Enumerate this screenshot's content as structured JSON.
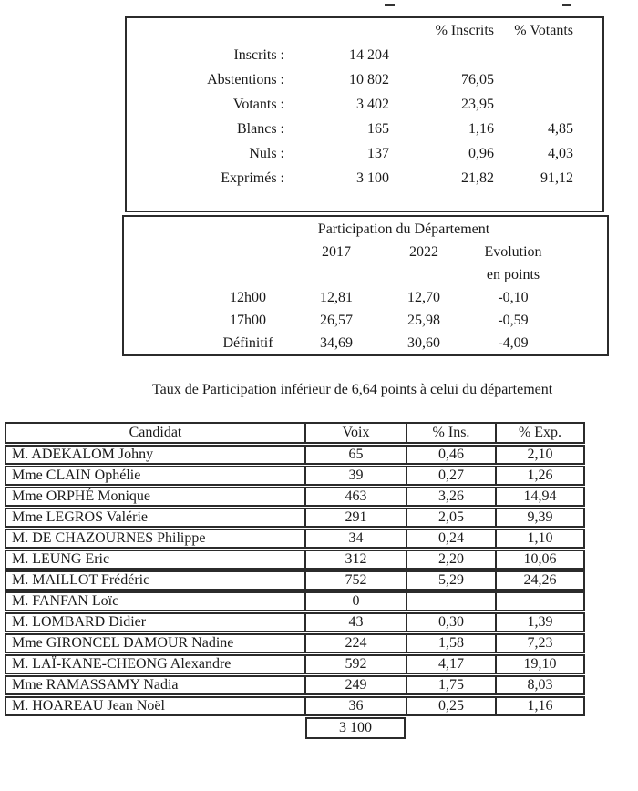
{
  "summary": {
    "headers": {
      "pct_inscrits": "% Inscrits",
      "pct_votants": "% Votants"
    },
    "rows": [
      {
        "label": "Inscrits :",
        "count": "14 204",
        "pct_inscrits": "",
        "pct_votants": ""
      },
      {
        "label": "Abstentions :",
        "count": "10 802",
        "pct_inscrits": "76,05",
        "pct_votants": ""
      },
      {
        "label": "Votants :",
        "count": "3 402",
        "pct_inscrits": "23,95",
        "pct_votants": ""
      },
      {
        "label": "Blancs :",
        "count": "165",
        "pct_inscrits": "1,16",
        "pct_votants": "4,85"
      },
      {
        "label": "Nuls :",
        "count": "137",
        "pct_inscrits": "0,96",
        "pct_votants": "4,03"
      },
      {
        "label": "Exprimés :",
        "count": "3 100",
        "pct_inscrits": "21,82",
        "pct_votants": "91,12"
      }
    ]
  },
  "participation": {
    "title": "Participation du Département",
    "col_2017": "2017",
    "col_2022": "2022",
    "col_evolution_line1": "Evolution",
    "col_evolution_line2": "en points",
    "rows": [
      {
        "label": "12h00",
        "y2017": "12,81",
        "y2022": "12,70",
        "evolution": "-0,10"
      },
      {
        "label": "17h00",
        "y2017": "26,57",
        "y2022": "25,98",
        "evolution": "-0,59"
      },
      {
        "label": "Définitif",
        "y2017": "34,69",
        "y2022": "30,60",
        "evolution": "-4,09"
      }
    ]
  },
  "note": "Taux de Participation inférieur de 6,64 points à celui du département",
  "candidates": {
    "headers": {
      "candidat": "Candidat",
      "voix": "Voix",
      "ins": "% Ins.",
      "exp": "% Exp."
    },
    "rows": [
      {
        "name": "M. ADEKALOM Johny",
        "voix": "65",
        "ins": "0,46",
        "exp": "2,10"
      },
      {
        "name": "Mme CLAIN Ophélie",
        "voix": "39",
        "ins": "0,27",
        "exp": "1,26"
      },
      {
        "name": "Mme ORPHÉ Monique",
        "voix": "463",
        "ins": "3,26",
        "exp": "14,94"
      },
      {
        "name": "Mme LEGROS Valérie",
        "voix": "291",
        "ins": "2,05",
        "exp": "9,39"
      },
      {
        "name": "M. DE CHAZOURNES Philippe",
        "voix": "34",
        "ins": "0,24",
        "exp": "1,10"
      },
      {
        "name": "M. LEUNG Eric",
        "voix": "312",
        "ins": "2,20",
        "exp": "10,06"
      },
      {
        "name": "M. MAILLOT Frédéric",
        "voix": "752",
        "ins": "5,29",
        "exp": "24,26"
      },
      {
        "name": "M. FANFAN Loïc",
        "voix": "0",
        "ins": "",
        "exp": ""
      },
      {
        "name": "M. LOMBARD Didier",
        "voix": "43",
        "ins": "0,30",
        "exp": "1,39"
      },
      {
        "name": "Mme GIRONCEL DAMOUR Nadine",
        "voix": "224",
        "ins": "1,58",
        "exp": "7,23"
      },
      {
        "name": "M. LAÏ-KANE-CHEONG Alexandre",
        "voix": "592",
        "ins": "4,17",
        "exp": "19,10"
      },
      {
        "name": "Mme RAMASSAMY Nadia",
        "voix": "249",
        "ins": "1,75",
        "exp": "8,03"
      },
      {
        "name": "M. HOAREAU Jean Noël",
        "voix": "36",
        "ins": "0,25",
        "exp": "1,16"
      }
    ],
    "total_voix": "3 100"
  }
}
